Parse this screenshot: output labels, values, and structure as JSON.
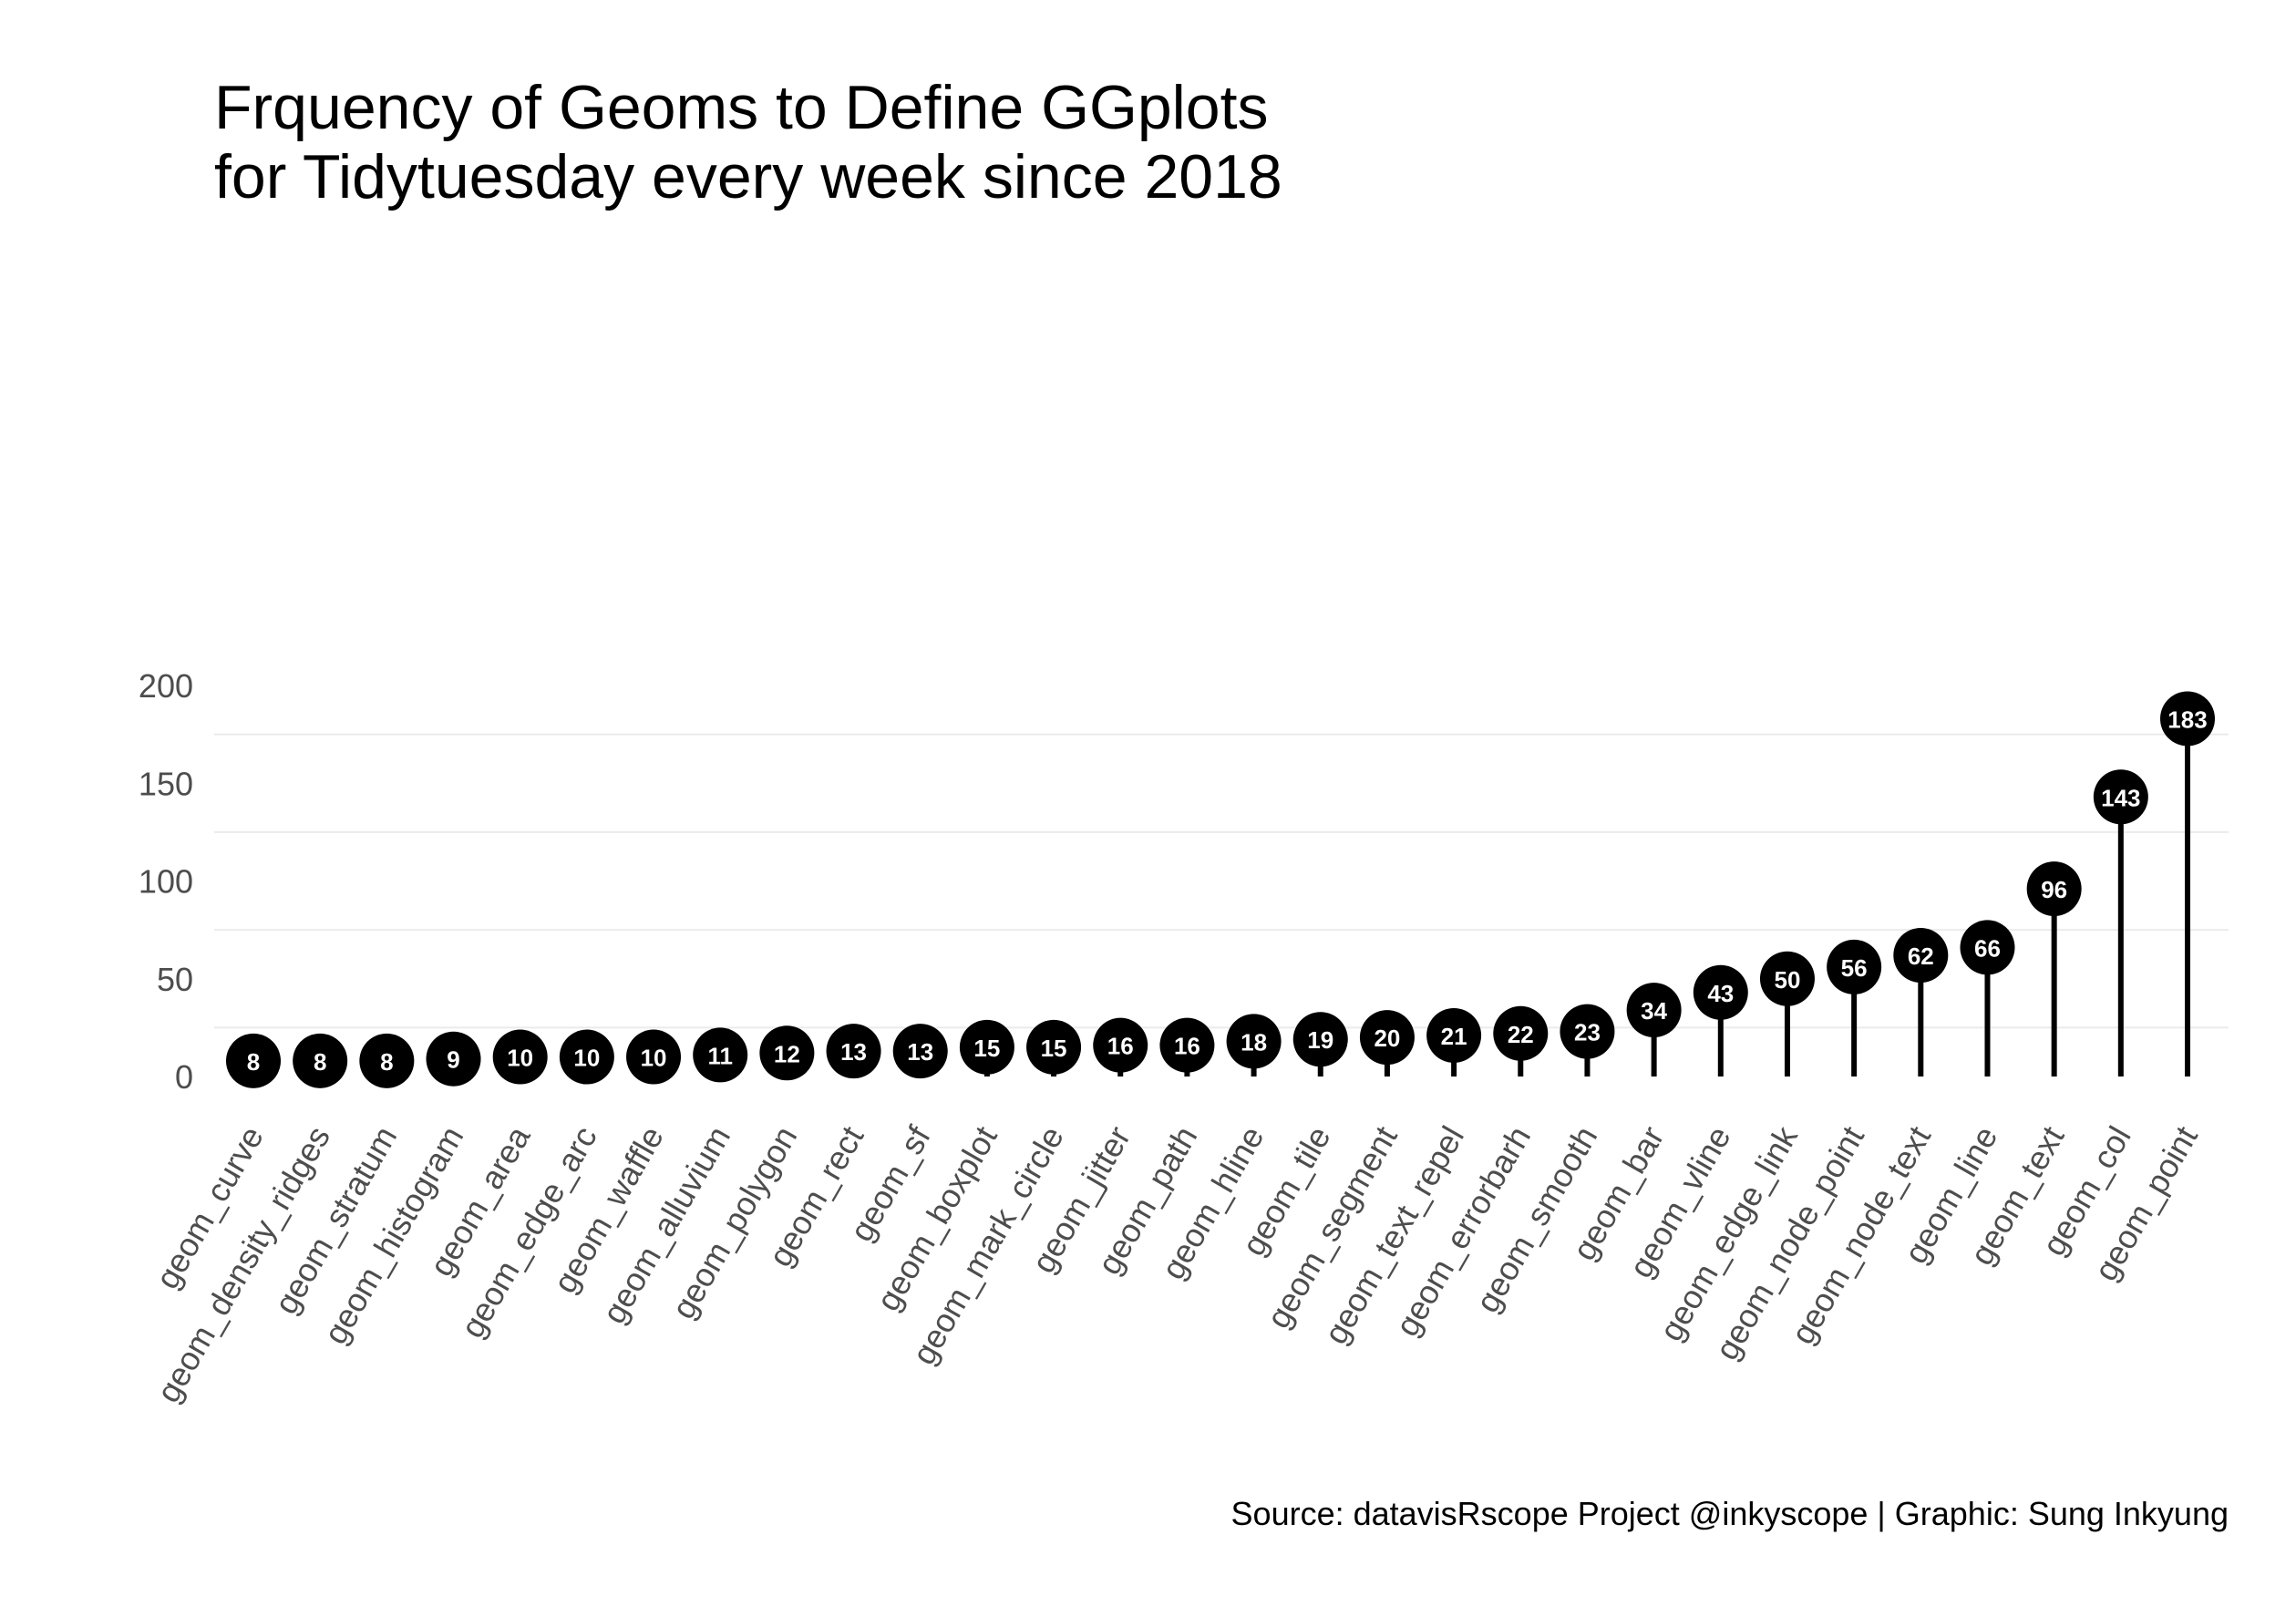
{
  "chart_data": {
    "type": "lollipop",
    "title": [
      "Frquency of Geoms to Define GGplots",
      "for Tidytuesday every week since 2018"
    ],
    "caption": "Source: datavisRscope Project @inkyscope | Graphic: Sung Inkyung",
    "xlabel": "",
    "ylabel": "",
    "ylim": [
      0,
      200
    ],
    "y_ticks": [
      0,
      50,
      100,
      150,
      200
    ],
    "grid": true,
    "legend": "none",
    "categories": [
      "geom_curve",
      "geom_density_ridges",
      "geom_stratum",
      "geom_histogram",
      "geom_area",
      "geom_edge_arc",
      "geom_waffle",
      "geom_alluvium",
      "geom_polygon",
      "geom_rect",
      "geom_sf",
      "geom_boxplot",
      "geom_mark_circle",
      "geom_jitter",
      "geom_path",
      "geom_hline",
      "geom_tile",
      "geom_segment",
      "geom_text_repel",
      "geom_errorbarh",
      "geom_smooth",
      "geom_bar",
      "geom_vline",
      "geom_edge_link",
      "geom_node_point",
      "geom_node_text",
      "geom_line",
      "geom_text",
      "geom_col",
      "geom_point"
    ],
    "values": [
      8,
      8,
      8,
      9,
      10,
      10,
      10,
      11,
      12,
      13,
      13,
      15,
      15,
      16,
      16,
      18,
      19,
      20,
      21,
      22,
      23,
      34,
      43,
      50,
      56,
      62,
      66,
      96,
      143,
      183
    ],
    "colors": {
      "stem": "#000000",
      "point": "#000000",
      "point_label": "#ffffff",
      "grid": "#ebebeb",
      "axis_text": "#4d4d4d",
      "text": "#000000"
    }
  }
}
